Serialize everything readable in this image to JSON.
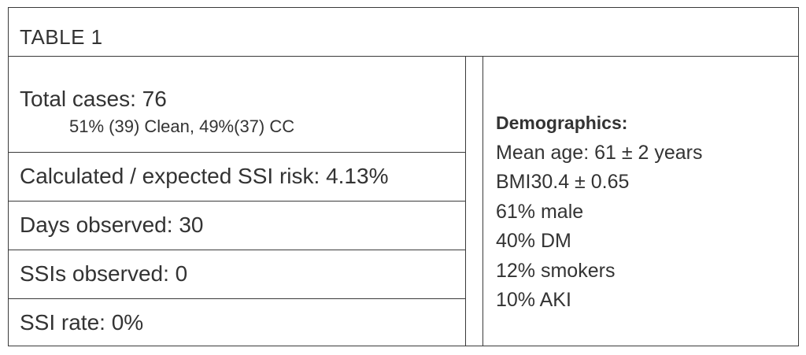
{
  "table": {
    "title": "TABLE 1",
    "left_rows": [
      {
        "main": "Total cases: 76",
        "sub": "51% (39) Clean, 49%(37) CC"
      },
      {
        "main": "Calculated / expected SSI risk: 4.13%"
      },
      {
        "main": "Days observed: 30"
      },
      {
        "main": "SSIs observed: 0"
      },
      {
        "main": "SSI rate: 0%"
      }
    ],
    "demographics": {
      "heading": "Demographics:",
      "items": [
        "Mean age: 61 ± 2 years",
        "BMI30.4 ± 0.65",
        "61% male",
        "40% DM",
        "12% smokers",
        "10% AKI"
      ]
    }
  }
}
